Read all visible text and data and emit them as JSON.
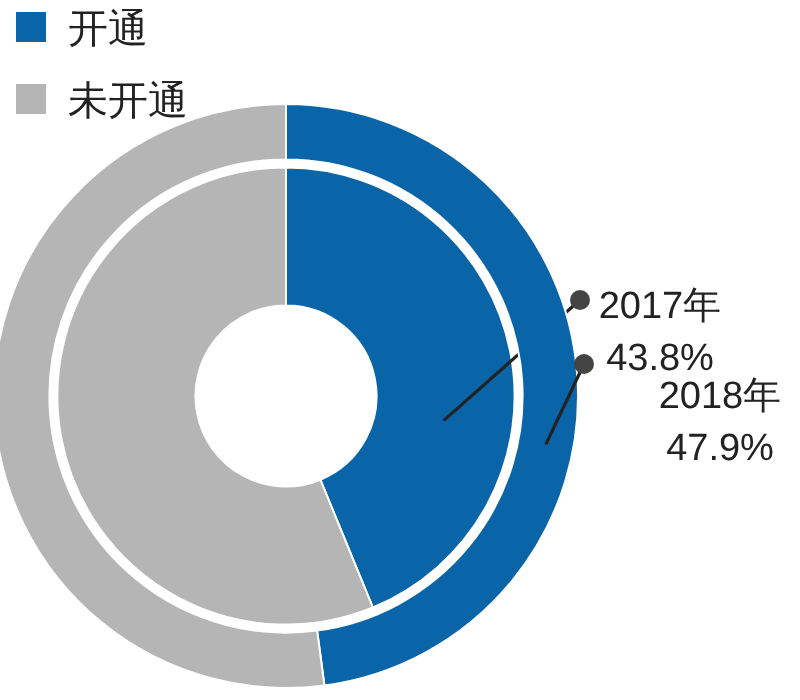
{
  "chart_data": {
    "type": "donut",
    "categories": [
      "开通",
      "未开通"
    ],
    "colors": [
      "#0a64a8",
      "#b5b5b6"
    ],
    "legend": "top left",
    "series": [
      {
        "name": "2017年",
        "values": [
          43.8,
          56.2
        ],
        "value_labels": [
          "43.8%",
          null
        ]
      },
      {
        "name": "2018年",
        "values": [
          47.9,
          52.1
        ],
        "value_labels": [
          "47.9%",
          null
        ]
      }
    ]
  }
}
